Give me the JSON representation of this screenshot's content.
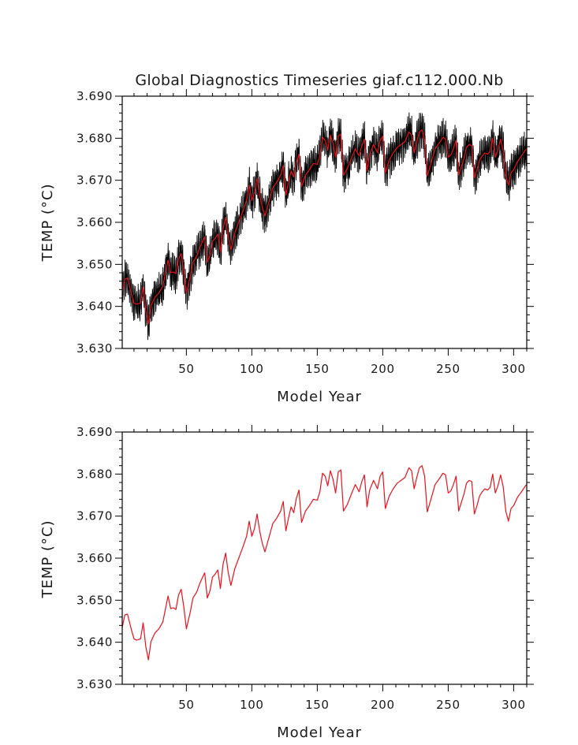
{
  "chart_data": [
    {
      "type": "line",
      "title": "Global Diagnostics Timeseries giaf.c112.000.Nb",
      "xlabel": "Model Year",
      "ylabel": "TEMP (°C)",
      "xlim": [
        1,
        310
      ],
      "ylim": [
        3.63,
        3.69
      ],
      "xticks": [
        50,
        100,
        150,
        200,
        250,
        300
      ],
      "yticks": [
        "3.630",
        "3.640",
        "3.650",
        "3.660",
        "3.670",
        "3.680",
        "3.690"
      ],
      "series": [
        {
          "name": "monthly",
          "color": "#000000",
          "style": "monthly values, seasonal spread about ±0.004 around the annual mean"
        },
        {
          "name": "annual mean",
          "color": "#e8121c"
        }
      ]
    },
    {
      "type": "line",
      "title": "",
      "xlabel": "Model Year",
      "ylabel": "TEMP (°C)",
      "xlim": [
        1,
        310
      ],
      "ylim": [
        3.63,
        3.69
      ],
      "xticks": [
        50,
        100,
        150,
        200,
        250,
        300
      ],
      "yticks": [
        "3.630",
        "3.640",
        "3.650",
        "3.660",
        "3.670",
        "3.680",
        "3.690"
      ],
      "series": [
        {
          "name": "annual mean",
          "color": "#e8121c"
        }
      ]
    }
  ],
  "annual_mean": {
    "years": [
      1,
      3,
      5,
      8,
      10,
      12,
      15,
      17,
      19,
      21,
      23,
      26,
      29,
      32,
      35,
      36,
      38,
      40,
      42,
      44,
      46,
      48,
      50,
      53,
      55,
      58,
      60,
      62,
      64,
      66,
      68,
      70,
      72,
      74,
      76,
      78,
      80,
      82,
      84,
      87,
      90,
      93,
      96,
      98,
      100,
      102,
      104,
      106,
      108,
      110,
      113,
      116,
      119,
      122,
      124,
      126,
      128,
      130,
      132,
      134,
      136,
      138,
      141,
      144,
      147,
      150,
      152,
      154,
      156,
      158,
      160,
      162,
      164,
      166,
      168,
      170,
      173,
      176,
      179,
      182,
      184,
      186,
      188,
      190,
      193,
      196,
      198,
      200,
      202,
      205,
      208,
      211,
      214,
      217,
      220,
      222,
      224,
      226,
      228,
      230,
      232,
      234,
      237,
      240,
      243,
      246,
      248,
      250,
      252,
      254,
      256,
      258,
      260,
      262,
      264,
      266,
      268,
      270,
      272,
      274,
      276,
      278,
      280,
      282,
      284,
      286,
      288,
      290,
      292,
      294,
      296,
      298,
      300,
      303,
      306,
      309,
      310
    ],
    "values": [
      3.6435,
      3.6465,
      3.6467,
      3.643,
      3.6408,
      3.6405,
      3.6408,
      3.6446,
      3.639,
      3.6358,
      3.6402,
      3.6422,
      3.6432,
      3.6448,
      3.6494,
      3.651,
      3.648,
      3.6482,
      3.6478,
      3.6512,
      3.6526,
      3.6485,
      3.6432,
      3.6472,
      3.6505,
      3.652,
      3.6538,
      3.6552,
      3.6565,
      3.6505,
      3.6522,
      3.6555,
      3.6562,
      3.6572,
      3.6528,
      3.6585,
      3.6612,
      3.6565,
      3.6535,
      3.6575,
      3.66,
      3.6625,
      3.6652,
      3.6688,
      3.6652,
      3.667,
      3.6705,
      3.6665,
      3.6635,
      3.6615,
      3.6648,
      3.6682,
      3.6695,
      3.6712,
      3.6735,
      3.6665,
      3.6695,
      3.6722,
      3.6708,
      3.6742,
      3.6762,
      3.6685,
      3.6712,
      3.6725,
      3.674,
      3.6738,
      3.6758,
      3.6802,
      3.6795,
      3.6772,
      3.6808,
      3.6788,
      3.6755,
      3.6805,
      3.681,
      3.6712,
      3.6728,
      3.6752,
      3.6775,
      3.6758,
      3.6782,
      3.6798,
      3.6722,
      3.6762,
      3.6785,
      3.6765,
      3.6795,
      3.6805,
      3.6718,
      3.6748,
      3.6765,
      3.6778,
      3.6785,
      3.6792,
      3.6815,
      3.6808,
      3.6765,
      3.6792,
      3.6815,
      3.682,
      3.6795,
      3.671,
      3.6742,
      3.6775,
      3.6788,
      3.6802,
      3.6798,
      3.6755,
      3.676,
      3.6775,
      3.6795,
      3.6712,
      3.6732,
      3.6752,
      3.6778,
      3.6785,
      3.6782,
      3.6705,
      3.6725,
      3.6748,
      3.6758,
      3.6765,
      3.6762,
      3.6768,
      3.68,
      3.6755,
      3.6772,
      3.6798,
      3.677,
      3.6712,
      3.6688,
      3.6718,
      3.6725,
      3.6745,
      3.6758,
      3.6772,
      3.6775
    ]
  }
}
